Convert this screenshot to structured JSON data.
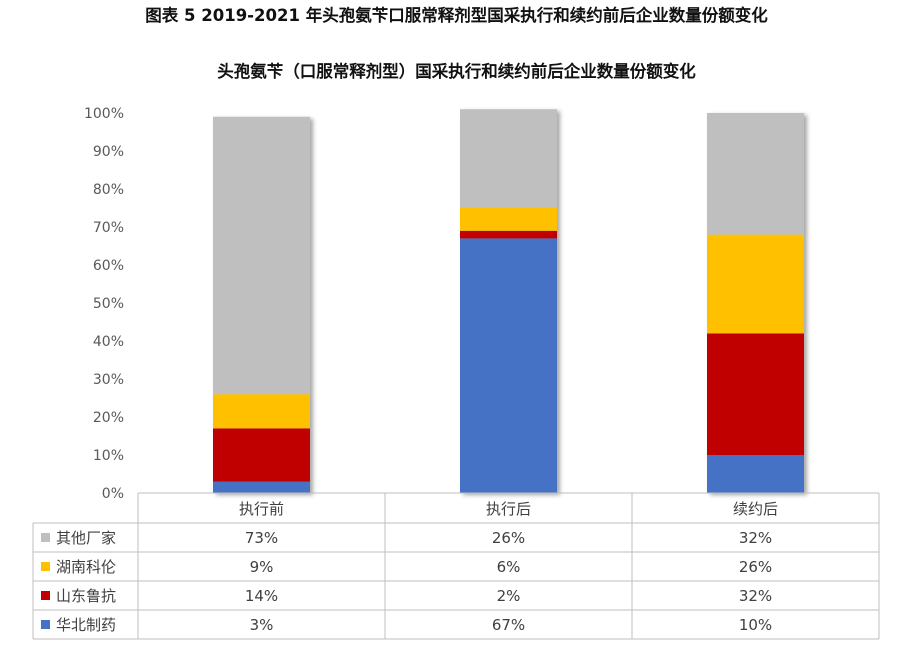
{
  "figure_caption": "图表 5 2019-2021 年头孢氨苄口服常释剂型国采执行和续约前后企业数量份额变化",
  "colors": {
    "其他厂家": "#bfbfbf",
    "湖南科伦": "#ffc000",
    "山东鲁抗": "#c00000",
    "华北制药": "#4472c4"
  },
  "chart_data": {
    "type": "bar",
    "stacked": true,
    "title": "头孢氨苄（口服常释剂型）国采执行和续约前后企业数量份额变化",
    "categories": [
      "执行前",
      "执行后",
      "续约后"
    ],
    "ylim": [
      0,
      100
    ],
    "y_ticks": [
      "0%",
      "10%",
      "20%",
      "30%",
      "40%",
      "50%",
      "60%",
      "70%",
      "80%",
      "90%",
      "100%"
    ],
    "series": [
      {
        "name": "华北制药",
        "values": [
          3,
          67,
          10
        ],
        "labels": [
          "3%",
          "67%",
          "10%"
        ]
      },
      {
        "name": "山东鲁抗",
        "values": [
          14,
          2,
          32
        ],
        "labels": [
          "14%",
          "2%",
          "32%"
        ]
      },
      {
        "name": "湖南科伦",
        "values": [
          9,
          6,
          26
        ],
        "labels": [
          "9%",
          "6%",
          "26%"
        ]
      },
      {
        "name": "其他厂家",
        "values": [
          73,
          26,
          32
        ],
        "labels": [
          "73%",
          "26%",
          "32%"
        ]
      }
    ],
    "table_rows": [
      "其他厂家",
      "湖南科伦",
      "山东鲁抗",
      "华北制药"
    ],
    "grid": false,
    "legend": "data-table"
  }
}
